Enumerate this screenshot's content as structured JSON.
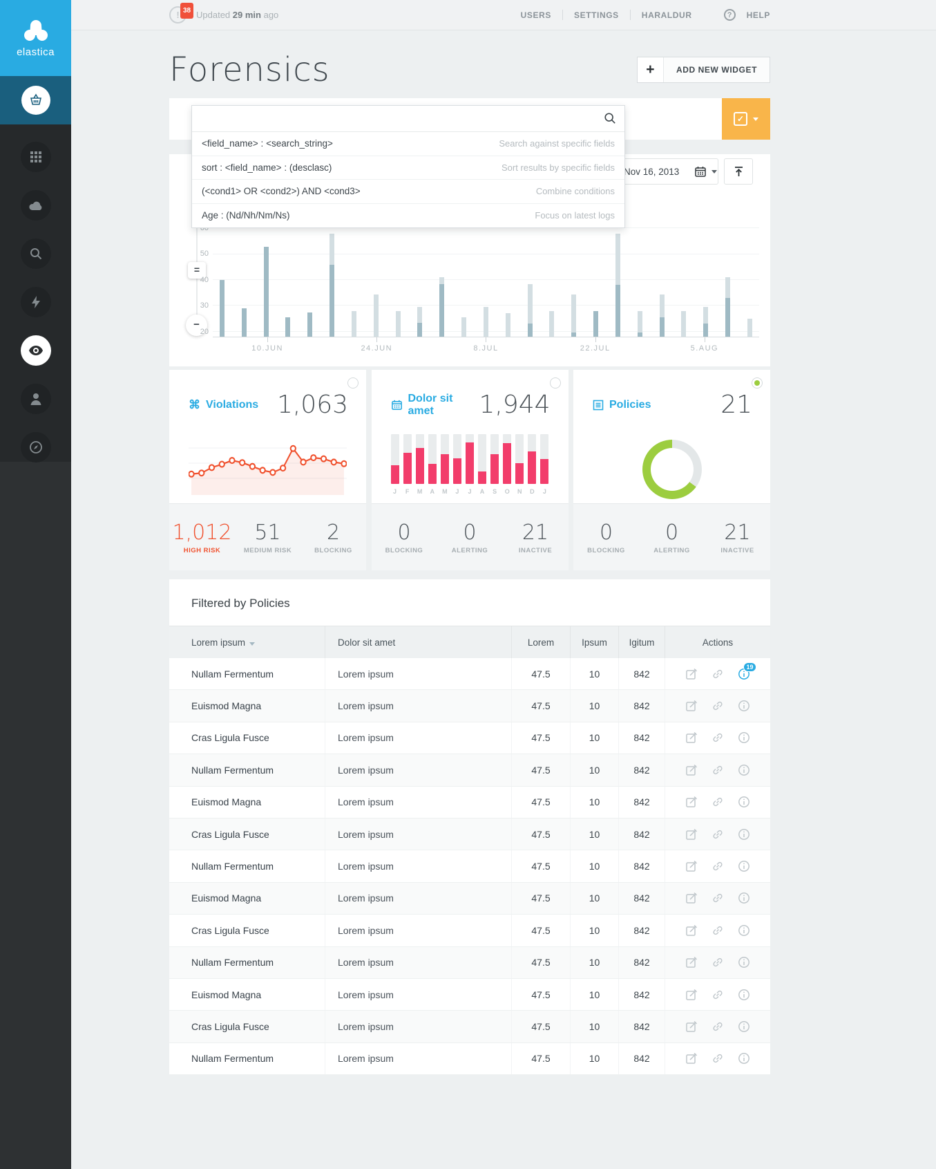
{
  "brand": {
    "name": "elastica"
  },
  "topbar": {
    "alert_count": "38",
    "updated_prefix": "Updated",
    "updated_strong": "29 min",
    "updated_suffix": "ago",
    "nav_users": "USERS",
    "nav_settings": "SETTINGS",
    "nav_account": "HARALDUR",
    "help_label": "HELP",
    "notification_glyph": "!"
  },
  "page": {
    "title": "Forensics",
    "add_widget_label": "ADD NEW WIDGET"
  },
  "search": {
    "value": "",
    "placeholder": "",
    "suggestions": [
      {
        "syntax": "<field_name> : <search_string>",
        "hint": "Search against specific fields"
      },
      {
        "syntax": "sort : <field_name> : (desclasc)",
        "hint": "Sort results by specific fields"
      },
      {
        "syntax": "(<cond1> OR <cond2>) AND <cond3>",
        "hint": "Combine conditions"
      },
      {
        "syntax": "Age : (Nd/Nh/Nm/Ns)",
        "hint": "Focus on latest logs"
      }
    ]
  },
  "toolbar": {
    "date": "Nov 16, 2013"
  },
  "zoom_controls": {
    "handle_glyph": "=",
    "minus_glyph": "−"
  },
  "chart_data": {
    "timeline": {
      "type": "bar",
      "title": "",
      "x_tick_labels": [
        "10.JUN",
        "24.JUN",
        "8.JUL",
        "22.JUL",
        "5.AUG"
      ],
      "y_ticks": [
        20,
        30,
        40,
        50,
        60
      ],
      "ymin": 18,
      "ymax": 62,
      "grid": true,
      "series": [
        {
          "name": "total",
          "values": [
            40,
            29,
            53,
            25.5,
            27.5,
            58,
            28,
            34.5,
            28,
            29.5,
            41,
            25.5,
            29.5,
            27,
            38.5,
            28,
            34.5,
            28,
            58,
            28,
            34.5,
            28,
            29.5,
            41,
            25
          ]
        },
        {
          "name": "active",
          "values": [
            40,
            29,
            53,
            25.5,
            27.5,
            46,
            0,
            0,
            0,
            23.5,
            38.5,
            0,
            0,
            0,
            23,
            0,
            19.5,
            28,
            38,
            19.5,
            25.5,
            0,
            23,
            33,
            0
          ]
        }
      ]
    },
    "violations_trend": {
      "type": "line",
      "ylim": [
        0,
        100
      ],
      "values": [
        30,
        32,
        42,
        48,
        55,
        51,
        44,
        37,
        33,
        41,
        77,
        52,
        60,
        58,
        52,
        49
      ]
    },
    "monthly": {
      "type": "bar",
      "categories": [
        "J",
        "F",
        "M",
        "A",
        "M",
        "J",
        "J",
        "A",
        "S",
        "O",
        "N",
        "D",
        "J"
      ],
      "values_pct": [
        38,
        63,
        72,
        40,
        60,
        52,
        83,
        25,
        60,
        82,
        42,
        65,
        50
      ],
      "max_pct": 100
    },
    "policies_donut": {
      "type": "pie",
      "slices": [
        {
          "label": "rest",
          "value": 35,
          "color": "#e3e7e8"
        },
        {
          "label": "active",
          "value": 65,
          "color": "#9ccd3f"
        }
      ]
    }
  },
  "widgets": {
    "violations": {
      "label": "Violations",
      "value": "1,063",
      "stats": [
        {
          "value": "1,012",
          "label": "HIGH RISK",
          "accent": true
        },
        {
          "value": "51",
          "label": "MEDIUM RISK"
        },
        {
          "value": "2",
          "label": "BLOCKING"
        }
      ]
    },
    "dolor": {
      "label": "Dolor sit amet",
      "value": "1,944",
      "stats": [
        {
          "value": "0",
          "label": "BLOCKING"
        },
        {
          "value": "0",
          "label": "ALERTING"
        },
        {
          "value": "21",
          "label": "INACTIVE"
        }
      ]
    },
    "policies": {
      "label": "Policies",
      "value": "21",
      "stats": [
        {
          "value": "0",
          "label": "BLOCKING"
        },
        {
          "value": "0",
          "label": "ALERTING"
        },
        {
          "value": "21",
          "label": "INACTIVE"
        }
      ]
    }
  },
  "table": {
    "title": "Filtered by Policies",
    "columns": [
      "Lorem ipsum",
      "Dolor sit amet",
      "Lorem",
      "Ipsum",
      "Igitum",
      "Actions"
    ],
    "rows": [
      {
        "name": "Nullam Fermentum",
        "desc": "Lorem ipsum",
        "lorem": "47.5",
        "ipsum": "10",
        "igitum": "842",
        "badge": "19"
      },
      {
        "name": "Euismod Magna",
        "desc": "Lorem ipsum",
        "lorem": "47.5",
        "ipsum": "10",
        "igitum": "842"
      },
      {
        "name": "Cras Ligula Fusce",
        "desc": "Lorem ipsum",
        "lorem": "47.5",
        "ipsum": "10",
        "igitum": "842"
      },
      {
        "name": "Nullam Fermentum",
        "desc": "Lorem ipsum",
        "lorem": "47.5",
        "ipsum": "10",
        "igitum": "842"
      },
      {
        "name": "Euismod Magna",
        "desc": "Lorem ipsum",
        "lorem": "47.5",
        "ipsum": "10",
        "igitum": "842"
      },
      {
        "name": "Cras Ligula Fusce",
        "desc": "Lorem ipsum",
        "lorem": "47.5",
        "ipsum": "10",
        "igitum": "842"
      },
      {
        "name": "Nullam Fermentum",
        "desc": "Lorem ipsum",
        "lorem": "47.5",
        "ipsum": "10",
        "igitum": "842"
      },
      {
        "name": "Euismod Magna",
        "desc": "Lorem ipsum",
        "lorem": "47.5",
        "ipsum": "10",
        "igitum": "842"
      },
      {
        "name": "Cras Ligula Fusce",
        "desc": "Lorem ipsum",
        "lorem": "47.5",
        "ipsum": "10",
        "igitum": "842"
      },
      {
        "name": "Nullam Fermentum",
        "desc": "Lorem ipsum",
        "lorem": "47.5",
        "ipsum": "10",
        "igitum": "842"
      },
      {
        "name": "Euismod Magna",
        "desc": "Lorem ipsum",
        "lorem": "47.5",
        "ipsum": "10",
        "igitum": "842"
      },
      {
        "name": "Cras Ligula Fusce",
        "desc": "Lorem ipsum",
        "lorem": "47.5",
        "ipsum": "10",
        "igitum": "842"
      },
      {
        "name": "Nullam Fermentum",
        "desc": "Lorem ipsum",
        "lorem": "47.5",
        "ipsum": "10",
        "igitum": "842"
      }
    ]
  },
  "colors": {
    "accent_blue": "#29abe2",
    "orange": "#f9b54a",
    "red": "#f0512e",
    "pink": "#f23d6b",
    "green": "#9ccd3f",
    "bar_dark": "#9fbac4",
    "bar_light": "#d3dee2"
  }
}
